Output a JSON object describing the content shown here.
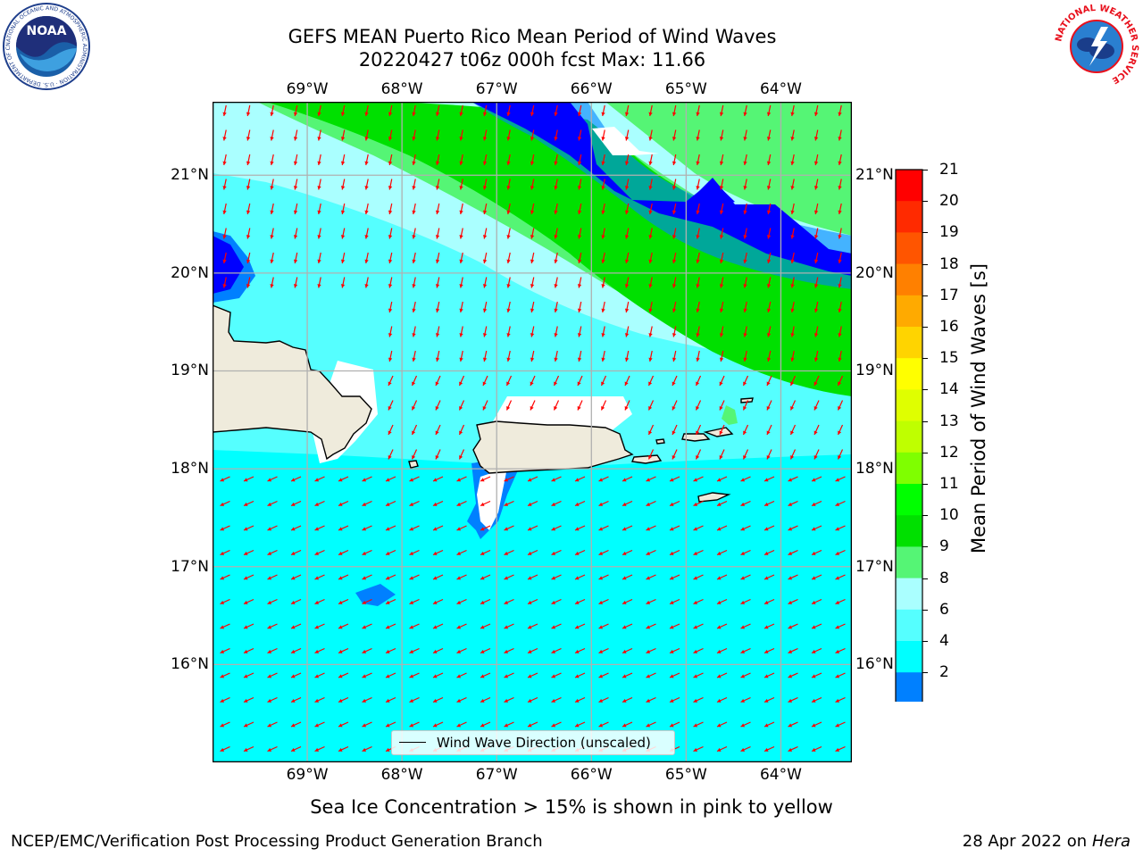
{
  "header": {
    "title_line1": "GEFS MEAN Puerto Rico Mean Period of Wind Waves",
    "title_line2": "20220427 t06z 000h fcst   Max: 11.66"
  },
  "map": {
    "lon_ticks": [
      "69°W",
      "68°W",
      "67°W",
      "66°W",
      "65°W",
      "64°W"
    ],
    "lat_ticks": [
      "21°N",
      "20°N",
      "19°N",
      "18°N",
      "17°N",
      "16°N"
    ],
    "lon_range": [
      -70.0,
      -63.25
    ],
    "lat_range": [
      15.0,
      21.75
    ],
    "legend_label": "Wind Wave Direction (unscaled)",
    "arrow_color": "#ff0000",
    "land_color": "#efebdc"
  },
  "colorbar": {
    "title": "Mean Period of Wind Waves [s]",
    "labels": [
      "21",
      "20",
      "19",
      "18",
      "17",
      "16",
      "15",
      "14",
      "13",
      "12",
      "11",
      "10",
      "9",
      "8",
      "6",
      "4",
      "2"
    ],
    "colors": [
      "#ff0000",
      "#ff2a00",
      "#ff5500",
      "#ff8000",
      "#ffaa00",
      "#ffd400",
      "#ffff00",
      "#dfff00",
      "#bfff00",
      "#7fff00",
      "#00ff00",
      "#00e000",
      "#55f575",
      "#aaffff",
      "#55ffff",
      "#00ffff",
      "#0080ff",
      "#0000ff"
    ]
  },
  "logos": {
    "noaa_text": "NOAA",
    "noaa_ring": "NATIONAL OCEANIC AND ATMOSPHERIC ADMINISTRATION · U.S. DEPARTMENT OF COMMERCE",
    "nws_ring": "NATIONAL WEATHER SERVICE"
  },
  "footer": {
    "sea_ice_note": "Sea Ice Concentration > 15% is shown in pink to yellow",
    "branch": "NCEP/EMC/Verification Post Processing Product Generation Branch",
    "date": "28 Apr 2022 on ",
    "machine": "Hera"
  }
}
